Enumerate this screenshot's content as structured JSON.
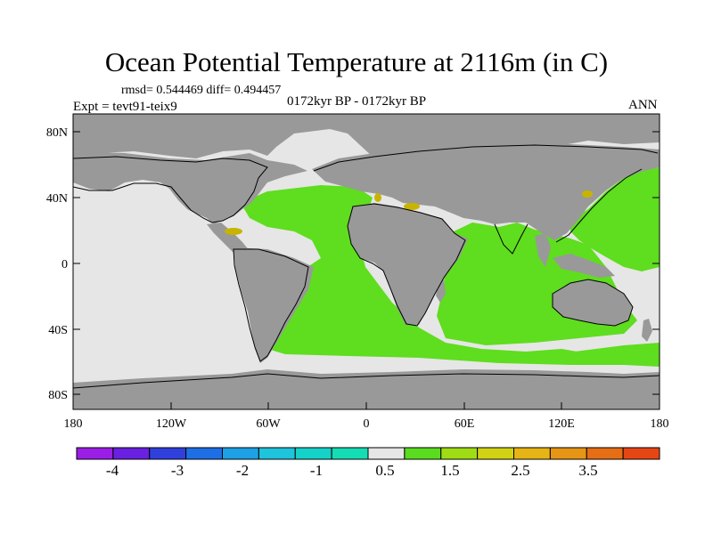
{
  "title": "Ocean Potential Temperature at 2116m (in C)",
  "stats": "rmsd= 0.544469  diff= 0.494457",
  "experiment": "Expt = tevt91-teix9",
  "period": "0172kyr BP - 0172kyr BP",
  "season": "ANN",
  "map": {
    "lat_labels": [
      "80N",
      "40N",
      "0",
      "40S",
      "80S"
    ],
    "lon_labels": [
      "180",
      "120W",
      "60W",
      "0",
      "60E",
      "120E",
      "180"
    ],
    "colors": {
      "land": "#999999",
      "no_data": "#e6e6e6",
      "diff_0_5_1": "#5fdd1f",
      "diff_2_2_5": "#c8b400",
      "outline": "#000000"
    }
  },
  "colorbar": {
    "labels": [
      "-4",
      "-3",
      "-2",
      "-1",
      "0.5",
      "1.5",
      "2.5",
      "3.5"
    ],
    "colors": [
      "#9b1ee6",
      "#6a20e0",
      "#2f40dc",
      "#1e6ee6",
      "#1ea0e6",
      "#1ec3dc",
      "#14d2c8",
      "#14dcb4",
      "#e6e6e6",
      "#5adc1e",
      "#a0dc14",
      "#d2d214",
      "#e6b414",
      "#e69614",
      "#e66e14",
      "#e64614"
    ]
  }
}
